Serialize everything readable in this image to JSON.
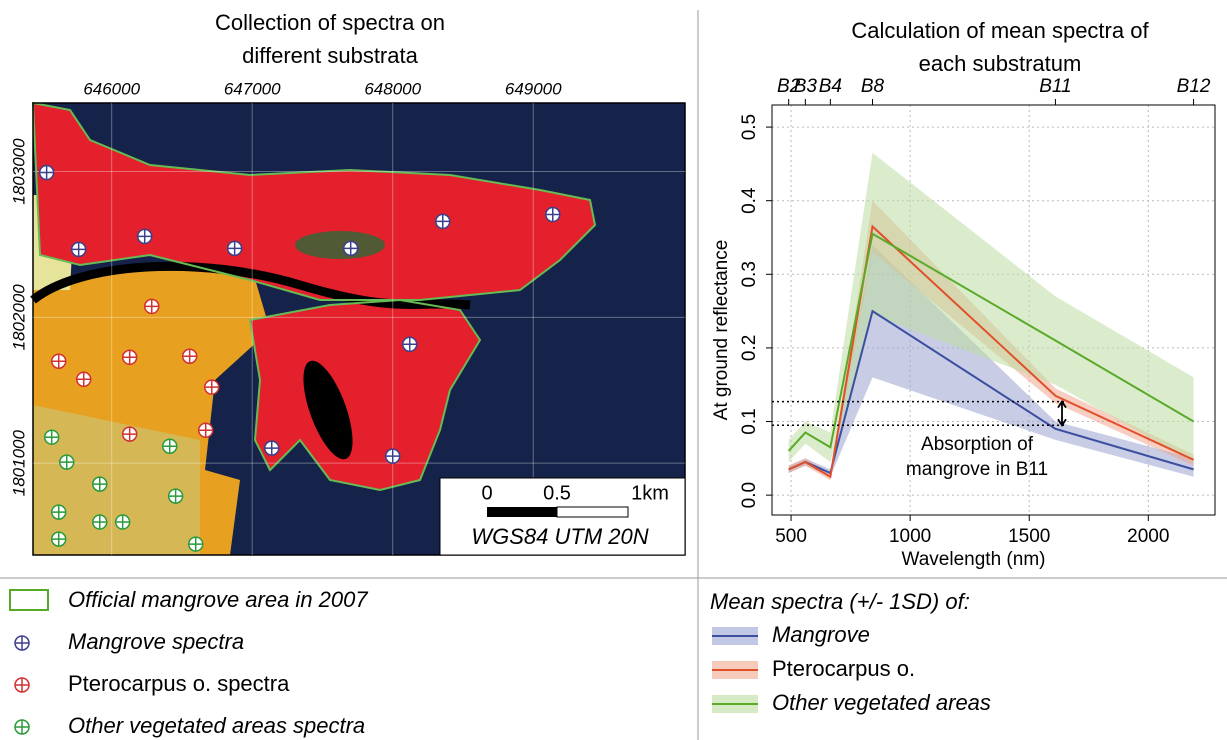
{
  "map": {
    "title": "Collection of spectra on different substrata",
    "xlim": [
      645440,
      650080
    ],
    "ylim": [
      1800370,
      1803470
    ],
    "xticks": [
      646000,
      647000,
      648000,
      649000
    ],
    "yticks": [
      1801000,
      1802000,
      1803000
    ],
    "scale_labels": [
      "0",
      "0.5",
      "1km"
    ],
    "projection": "WGS84 UTM 20N",
    "outline_legend": "Official mangrove area in 2007",
    "point_groups": [
      {
        "name": "Mangrove spectra",
        "color": "#3b3f8c",
        "x": [
          645537,
          645765,
          646235,
          646875,
          647701,
          648356,
          649139,
          648121,
          647139,
          648000
        ],
        "y": [
          1802993,
          1802466,
          1802555,
          1802473,
          1802473,
          1802658,
          1802705,
          1801815,
          1801103,
          1801048
        ]
      },
      {
        "name": "Pterocarpus o. spectra",
        "color": "#d03030",
        "x": [
          646285,
          645623,
          645801,
          646128,
          646555,
          646712,
          646128,
          646669
        ],
        "y": [
          1802075,
          1801699,
          1801575,
          1801726,
          1801733,
          1801521,
          1801199,
          1801226
        ]
      },
      {
        "name": "Other vegetated areas spectra",
        "color": "#2a9a3a",
        "x": [
          645573,
          645680,
          646413,
          645915,
          646455,
          645623,
          645915,
          646078,
          645623,
          646598
        ],
        "y": [
          1801178,
          1801007,
          1801116,
          1800856,
          1800774,
          1800664,
          1800596,
          1800596,
          1800479,
          1800445
        ]
      }
    ]
  },
  "chart_data": {
    "type": "line",
    "title": "Calculation of mean spectra of each substratum",
    "x_label": "Wavelength (nm)",
    "y_label": "At ground reflectance",
    "legend_title": "Mean spectra (+/- 1SD) of:",
    "x": [
      490,
      560,
      665,
      842,
      1610,
      2190
    ],
    "xlim": [
      420,
      2280
    ],
    "ylim": [
      -0.027,
      0.53
    ],
    "xticks": [
      500,
      1000,
      1500,
      2000
    ],
    "yticks": [
      {
        "value": 0,
        "label": "0.0"
      },
      0.1,
      0.2,
      0.3,
      0.4,
      0.5
    ],
    "top_ticks": [
      {
        "value": 490,
        "label": "B2"
      },
      {
        "value": 560,
        "label": "B3"
      },
      {
        "value": 665,
        "label": "B4"
      },
      {
        "value": 842,
        "label": "B8"
      },
      {
        "value": 1610,
        "label": "B11"
      },
      {
        "value": 2190,
        "label": "B12"
      }
    ],
    "grid": true,
    "series": [
      {
        "name": "Mangrove",
        "color": "#3a4fa0",
        "band_color": "#9aa3d0",
        "values": [
          0.035,
          0.045,
          0.03,
          0.25,
          0.09,
          0.035
        ],
        "upper": [
          0.04,
          0.05,
          0.035,
          0.34,
          0.1,
          0.05
        ],
        "lower": [
          0.03,
          0.04,
          0.025,
          0.16,
          0.075,
          0.025
        ]
      },
      {
        "name": "Pterocarpus o.",
        "color": "#e0502a",
        "band_color": "#f0a890",
        "values": [
          0.035,
          0.045,
          0.025,
          0.365,
          0.135,
          0.048
        ],
        "upper": [
          0.04,
          0.05,
          0.03,
          0.4,
          0.145,
          0.055
        ],
        "lower": [
          0.03,
          0.04,
          0.02,
          0.33,
          0.125,
          0.04
        ]
      },
      {
        "name": "Other vegetated areas",
        "color": "#5aaa2a",
        "band_color": "#bcdca0",
        "values": [
          0.06,
          0.085,
          0.065,
          0.355,
          0.21,
          0.1
        ],
        "upper": [
          0.075,
          0.1,
          0.085,
          0.465,
          0.27,
          0.16
        ],
        "lower": [
          0.045,
          0.07,
          0.045,
          0.245,
          0.15,
          0.045
        ]
      }
    ],
    "reference_lines": [
      0.127,
      0.095
    ],
    "annotation": "Absorption of mangrove in B11"
  }
}
